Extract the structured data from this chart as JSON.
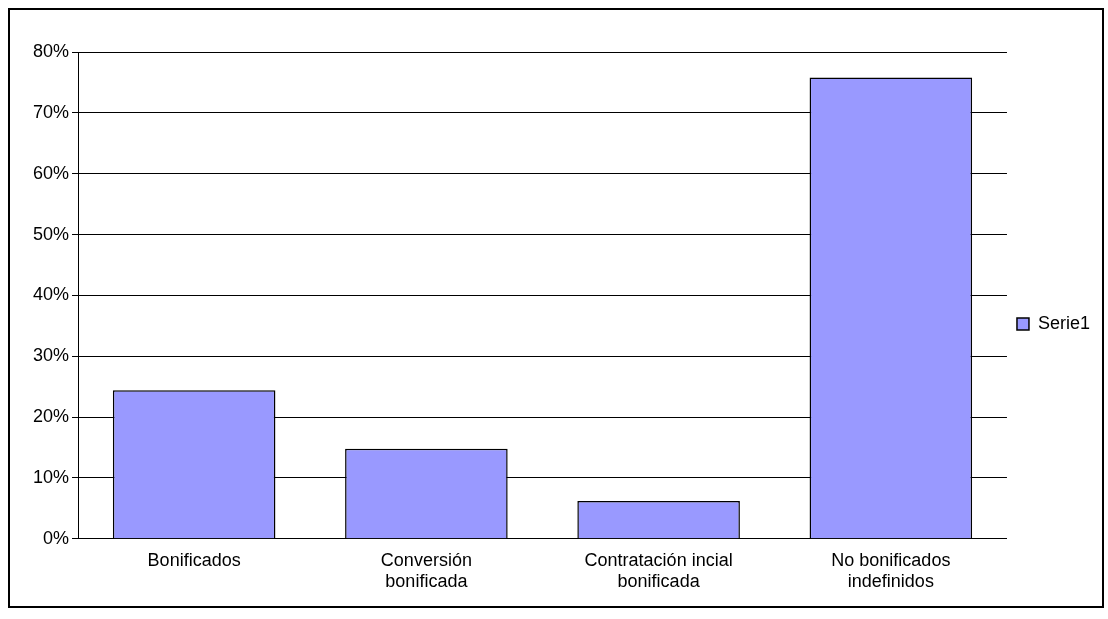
{
  "chart_data": {
    "type": "bar",
    "categories": [
      "Bonificados",
      "Conversión bonificada",
      "Contratación incial bonificada",
      "No bonificados indefinidos"
    ],
    "series": [
      {
        "name": "Serie1",
        "color": "#9999ff",
        "values": [
          24.4,
          14.8,
          6.2,
          75.8
        ]
      }
    ],
    "ylim": [
      0,
      80
    ],
    "yticks": [
      {
        "value": 0,
        "label": "0%"
      },
      {
        "value": 10,
        "label": "10%"
      },
      {
        "value": 20,
        "label": "20%"
      },
      {
        "value": 30,
        "label": "30%"
      },
      {
        "value": 40,
        "label": "40%"
      },
      {
        "value": 50,
        "label": "50%"
      },
      {
        "value": 60,
        "label": "60%"
      },
      {
        "value": 70,
        "label": "70%"
      },
      {
        "value": 80,
        "label": "80%"
      }
    ],
    "grid": "y",
    "legend": "right"
  }
}
